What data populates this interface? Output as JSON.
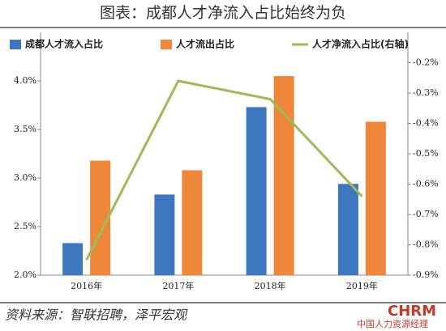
{
  "chart_data": {
    "type": "bar-line",
    "title": "图表：成都人才净流入占比始终为负",
    "categories": [
      "2016年",
      "2017年",
      "2018年",
      "2019年"
    ],
    "series": [
      {
        "name": "成都人才流入占比",
        "color": "#3d77bf",
        "type": "bar",
        "values": [
          2.33,
          2.83,
          3.73,
          2.94
        ]
      },
      {
        "name": "人才流出占比",
        "color": "#ef873a",
        "type": "bar",
        "values": [
          3.18,
          3.08,
          4.05,
          3.58
        ]
      },
      {
        "name": "人才净流入占比(右轴)",
        "color": "#9bbb59",
        "type": "line",
        "axis": "y2",
        "values": [
          -0.85,
          -0.26,
          -0.32,
          -0.64
        ]
      }
    ],
    "ylim": [
      2.0,
      4.5
    ],
    "yticks": [
      {
        "value": 2.0,
        "label": "2.0%"
      },
      {
        "value": 2.5,
        "label": "2.5%"
      },
      {
        "value": 3.0,
        "label": "3.0%"
      },
      {
        "value": 3.5,
        "label": "3.5%"
      },
      {
        "value": 4.0,
        "label": "4.0%"
      }
    ],
    "y2lim": [
      -0.9,
      -0.1
    ],
    "y2ticks": [
      {
        "value": -0.9,
        "label": "-0.9%"
      },
      {
        "value": -0.8,
        "label": "-0.8%"
      },
      {
        "value": -0.7,
        "label": "-0.7%"
      },
      {
        "value": -0.6,
        "label": "-0.6%"
      },
      {
        "value": -0.5,
        "label": "-0.5%"
      },
      {
        "value": -0.4,
        "label": "-0.4%"
      },
      {
        "value": -0.3,
        "label": "-0.3%"
      },
      {
        "value": -0.2,
        "label": "-0.2%"
      }
    ],
    "source": "资料来源：智联招聘，泽平宏观",
    "watermark": "CHRM",
    "watermark_sub": "中国人力资源经理"
  }
}
